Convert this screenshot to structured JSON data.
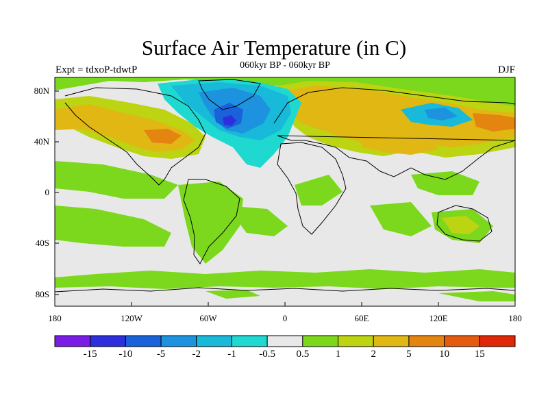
{
  "title": "Surface Air Temperature (in C)",
  "subtitle": "060kyr BP - 060kyr BP",
  "left_label": "Expt = tdxoP-tdwtP",
  "right_label": "DJF",
  "lat_ticks": [
    "80N",
    "40N",
    "0",
    "40S",
    "80S"
  ],
  "lon_ticks": [
    "180",
    "120W",
    "60W",
    "0",
    "60E",
    "120E",
    "180"
  ],
  "colorbar": {
    "labels": [
      "-15",
      "-10",
      "-5",
      "-2",
      "-1",
      "-0.5",
      "0.5",
      "1",
      "2",
      "5",
      "10",
      "15"
    ],
    "colors": [
      "#7b1be6",
      "#2d2fdc",
      "#1a62dc",
      "#1d93df",
      "#19b9da",
      "#1fd8cf",
      "#e8e8e8",
      "#7cd81c",
      "#bcd412",
      "#e1b713",
      "#e48510",
      "#e45b10",
      "#df2808"
    ]
  },
  "palette": {
    "land_outline": "#000000",
    "neutral": "#e8e8e8"
  }
}
